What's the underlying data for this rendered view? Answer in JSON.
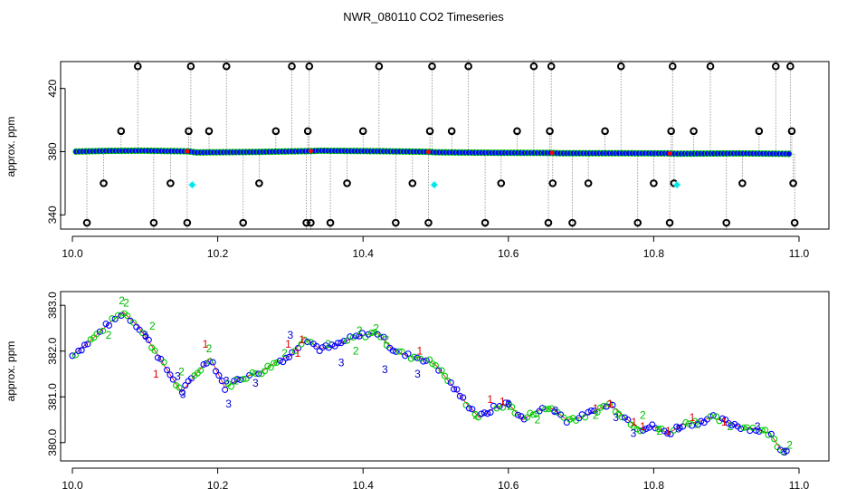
{
  "chart_data": [
    {
      "type": "scatter",
      "title": "NWR_080110  CO2 Timeseries",
      "ylabel": "approx. ppm",
      "xlim": [
        10.0,
        11.0
      ],
      "ylim": [
        331.0,
        437.0
      ],
      "x_ticks": [
        "10.0",
        "10.2",
        "10.4",
        "10.6",
        "10.8",
        "11.0"
      ],
      "y_ticks": [
        "340",
        "380",
        "420"
      ],
      "y_tick_values": [
        340,
        380,
        420
      ],
      "grid": false,
      "baseline": [
        {
          "x": 10.0,
          "y": 380.0
        },
        {
          "x": 10.05,
          "y": 380.5
        },
        {
          "x": 10.1,
          "y": 380.6
        },
        {
          "x": 10.16,
          "y": 380.2
        },
        {
          "x": 10.17,
          "y": 379.5
        },
        {
          "x": 10.25,
          "y": 379.8
        },
        {
          "x": 10.33,
          "y": 380.4
        },
        {
          "x": 10.34,
          "y": 380.6
        },
        {
          "x": 10.42,
          "y": 380.3
        },
        {
          "x": 10.49,
          "y": 379.9
        },
        {
          "x": 10.5,
          "y": 379.6
        },
        {
          "x": 10.58,
          "y": 379.3
        },
        {
          "x": 10.66,
          "y": 379.2
        },
        {
          "x": 10.67,
          "y": 379.0
        },
        {
          "x": 10.75,
          "y": 379.0
        },
        {
          "x": 10.82,
          "y": 378.9
        },
        {
          "x": 10.83,
          "y": 378.7
        },
        {
          "x": 10.92,
          "y": 378.9
        },
        {
          "x": 10.99,
          "y": 378.6
        }
      ],
      "series": [
        {
          "values": [
            {
              "x": 10.02,
              "y": 335
            },
            {
              "x": 10.043,
              "y": 360
            },
            {
              "x": 10.067,
              "y": 393
            },
            {
              "x": 10.09,
              "y": 434
            },
            {
              "x": 10.112,
              "y": 335
            },
            {
              "x": 10.135,
              "y": 360
            },
            {
              "x": 10.158,
              "y": 335
            },
            {
              "x": 10.16,
              "y": 393
            },
            {
              "x": 10.163,
              "y": 434
            },
            {
              "x": 10.188,
              "y": 393
            },
            {
              "x": 10.212,
              "y": 434
            },
            {
              "x": 10.235,
              "y": 335
            },
            {
              "x": 10.257,
              "y": 360
            },
            {
              "x": 10.28,
              "y": 393
            },
            {
              "x": 10.302,
              "y": 434
            },
            {
              "x": 10.322,
              "y": 335
            },
            {
              "x": 10.324,
              "y": 393
            },
            {
              "x": 10.326,
              "y": 434
            },
            {
              "x": 10.328,
              "y": 335
            },
            {
              "x": 10.355,
              "y": 335
            },
            {
              "x": 10.378,
              "y": 360
            },
            {
              "x": 10.4,
              "y": 393
            },
            {
              "x": 10.422,
              "y": 434
            },
            {
              "x": 10.445,
              "y": 335
            },
            {
              "x": 10.468,
              "y": 360
            },
            {
              "x": 10.49,
              "y": 335
            },
            {
              "x": 10.492,
              "y": 393
            },
            {
              "x": 10.495,
              "y": 434
            },
            {
              "x": 10.522,
              "y": 393
            },
            {
              "x": 10.545,
              "y": 434
            },
            {
              "x": 10.568,
              "y": 335
            },
            {
              "x": 10.59,
              "y": 360
            },
            {
              "x": 10.612,
              "y": 393
            },
            {
              "x": 10.635,
              "y": 434
            },
            {
              "x": 10.655,
              "y": 335
            },
            {
              "x": 10.657,
              "y": 393
            },
            {
              "x": 10.659,
              "y": 434
            },
            {
              "x": 10.661,
              "y": 360
            },
            {
              "x": 10.688,
              "y": 335
            },
            {
              "x": 10.71,
              "y": 360
            },
            {
              "x": 10.733,
              "y": 393
            },
            {
              "x": 10.755,
              "y": 434
            },
            {
              "x": 10.778,
              "y": 335
            },
            {
              "x": 10.8,
              "y": 360
            },
            {
              "x": 10.822,
              "y": 335
            },
            {
              "x": 10.824,
              "y": 393
            },
            {
              "x": 10.826,
              "y": 434
            },
            {
              "x": 10.828,
              "y": 360
            },
            {
              "x": 10.855,
              "y": 393
            },
            {
              "x": 10.878,
              "y": 434
            },
            {
              "x": 10.9,
              "y": 335
            },
            {
              "x": 10.922,
              "y": 360
            },
            {
              "x": 10.945,
              "y": 393
            },
            {
              "x": 10.968,
              "y": 434
            },
            {
              "x": 10.988,
              "y": 434
            },
            {
              "x": 10.99,
              "y": 393
            },
            {
              "x": 10.992,
              "y": 360
            },
            {
              "x": 10.994,
              "y": 335
            }
          ]
        },
        {
          "values": [
            {
              "x": 10.165,
              "y": 359
            },
            {
              "x": 10.498,
              "y": 359
            },
            {
              "x": 10.832,
              "y": 359
            }
          ]
        }
      ]
    },
    {
      "type": "scatter",
      "ylabel": "approx. ppm",
      "xlim": [
        10.0,
        11.0
      ],
      "ylim": [
        379.6,
        383.3
      ],
      "x_ticks": [
        "10.0",
        "10.2",
        "10.4",
        "10.6",
        "10.8",
        "11.0"
      ],
      "y_ticks": [
        "380.0",
        "381.0",
        "382.0",
        "383.0"
      ],
      "y_tick_values": [
        380.0,
        381.0,
        382.0,
        383.0
      ],
      "grid": false,
      "trend": [
        {
          "x": 10.0,
          "y": 381.9
        },
        {
          "x": 10.03,
          "y": 382.3
        },
        {
          "x": 10.05,
          "y": 382.6
        },
        {
          "x": 10.07,
          "y": 382.85
        },
        {
          "x": 10.09,
          "y": 382.55
        },
        {
          "x": 10.11,
          "y": 382.1
        },
        {
          "x": 10.13,
          "y": 381.6
        },
        {
          "x": 10.15,
          "y": 381.1
        },
        {
          "x": 10.17,
          "y": 381.5
        },
        {
          "x": 10.19,
          "y": 381.85
        },
        {
          "x": 10.21,
          "y": 381.2
        },
        {
          "x": 10.23,
          "y": 381.4
        },
        {
          "x": 10.26,
          "y": 381.55
        },
        {
          "x": 10.28,
          "y": 381.75
        },
        {
          "x": 10.3,
          "y": 381.9
        },
        {
          "x": 10.32,
          "y": 382.3
        },
        {
          "x": 10.34,
          "y": 382.05
        },
        {
          "x": 10.36,
          "y": 382.1
        },
        {
          "x": 10.38,
          "y": 382.25
        },
        {
          "x": 10.4,
          "y": 382.35
        },
        {
          "x": 10.42,
          "y": 382.4
        },
        {
          "x": 10.44,
          "y": 382.05
        },
        {
          "x": 10.46,
          "y": 381.9
        },
        {
          "x": 10.48,
          "y": 381.85
        },
        {
          "x": 10.5,
          "y": 381.7
        },
        {
          "x": 10.52,
          "y": 381.3
        },
        {
          "x": 10.54,
          "y": 380.9
        },
        {
          "x": 10.56,
          "y": 380.55
        },
        {
          "x": 10.58,
          "y": 380.75
        },
        {
          "x": 10.6,
          "y": 380.85
        },
        {
          "x": 10.62,
          "y": 380.5
        },
        {
          "x": 10.64,
          "y": 380.7
        },
        {
          "x": 10.66,
          "y": 380.75
        },
        {
          "x": 10.68,
          "y": 380.5
        },
        {
          "x": 10.7,
          "y": 380.55
        },
        {
          "x": 10.72,
          "y": 380.7
        },
        {
          "x": 10.74,
          "y": 380.85
        },
        {
          "x": 10.76,
          "y": 380.55
        },
        {
          "x": 10.78,
          "y": 380.3
        },
        {
          "x": 10.8,
          "y": 380.35
        },
        {
          "x": 10.82,
          "y": 380.2
        },
        {
          "x": 10.84,
          "y": 380.4
        },
        {
          "x": 10.86,
          "y": 380.45
        },
        {
          "x": 10.88,
          "y": 380.55
        },
        {
          "x": 10.9,
          "y": 380.45
        },
        {
          "x": 10.92,
          "y": 380.35
        },
        {
          "x": 10.94,
          "y": 380.3
        },
        {
          "x": 10.96,
          "y": 380.2
        },
        {
          "x": 10.975,
          "y": 379.85
        },
        {
          "x": 10.985,
          "y": 379.85
        }
      ],
      "series": [
        {
          "values": [
            {
              "x": 10.115,
              "y": 381.5
            },
            {
              "x": 10.183,
              "y": 382.15
            },
            {
              "x": 10.297,
              "y": 382.15
            },
            {
              "x": 10.31,
              "y": 381.95
            },
            {
              "x": 10.316,
              "y": 382.25
            },
            {
              "x": 10.478,
              "y": 382.0
            },
            {
              "x": 10.575,
              "y": 380.95
            },
            {
              "x": 10.592,
              "y": 380.9
            },
            {
              "x": 10.72,
              "y": 380.75
            },
            {
              "x": 10.74,
              "y": 380.85
            },
            {
              "x": 10.773,
              "y": 380.45
            },
            {
              "x": 10.785,
              "y": 380.35
            },
            {
              "x": 10.82,
              "y": 380.25
            },
            {
              "x": 10.853,
              "y": 380.55
            },
            {
              "x": 10.897,
              "y": 380.45
            }
          ]
        },
        {
          "values": [
            {
              "x": 10.05,
              "y": 382.35
            },
            {
              "x": 10.068,
              "y": 383.1
            },
            {
              "x": 10.074,
              "y": 383.05
            },
            {
              "x": 10.11,
              "y": 382.55
            },
            {
              "x": 10.15,
              "y": 381.55
            },
            {
              "x": 10.188,
              "y": 382.05
            },
            {
              "x": 10.225,
              "y": 381.35
            },
            {
              "x": 10.292,
              "y": 381.95
            },
            {
              "x": 10.352,
              "y": 382.15
            },
            {
              "x": 10.39,
              "y": 382.0
            },
            {
              "x": 10.395,
              "y": 382.45
            },
            {
              "x": 10.418,
              "y": 382.5
            },
            {
              "x": 10.432,
              "y": 382.25
            },
            {
              "x": 10.555,
              "y": 380.6
            },
            {
              "x": 10.602,
              "y": 380.8
            },
            {
              "x": 10.64,
              "y": 380.5
            },
            {
              "x": 10.72,
              "y": 380.6
            },
            {
              "x": 10.785,
              "y": 380.6
            },
            {
              "x": 10.808,
              "y": 380.25
            },
            {
              "x": 10.86,
              "y": 380.4
            },
            {
              "x": 10.905,
              "y": 380.35
            },
            {
              "x": 10.987,
              "y": 379.95
            }
          ]
        },
        {
          "values": [
            {
              "x": 10.1,
              "y": 382.35
            },
            {
              "x": 10.145,
              "y": 381.45
            },
            {
              "x": 10.152,
              "y": 381.05
            },
            {
              "x": 10.212,
              "y": 381.35
            },
            {
              "x": 10.215,
              "y": 380.85
            },
            {
              "x": 10.252,
              "y": 381.3
            },
            {
              "x": 10.3,
              "y": 382.35
            },
            {
              "x": 10.37,
              "y": 381.75
            },
            {
              "x": 10.43,
              "y": 381.6
            },
            {
              "x": 10.475,
              "y": 381.5
            },
            {
              "x": 10.6,
              "y": 380.85
            },
            {
              "x": 10.665,
              "y": 380.7
            },
            {
              "x": 10.748,
              "y": 380.55
            },
            {
              "x": 10.772,
              "y": 380.2
            },
            {
              "x": 10.834,
              "y": 380.3
            },
            {
              "x": 10.943,
              "y": 380.35
            },
            {
              "x": 10.98,
              "y": 379.8
            }
          ]
        }
      ]
    }
  ],
  "colors": {
    "outlier": "#000000",
    "point_fill": "#0000ff",
    "point_edge": "#00cc00",
    "flag": "#ff0000",
    "cyan": "#00e5e5",
    "dash": "#8a8a8a",
    "digit_1": "#dd0000",
    "digit_2": "#00bb00",
    "digit_3": "#0000cc"
  }
}
